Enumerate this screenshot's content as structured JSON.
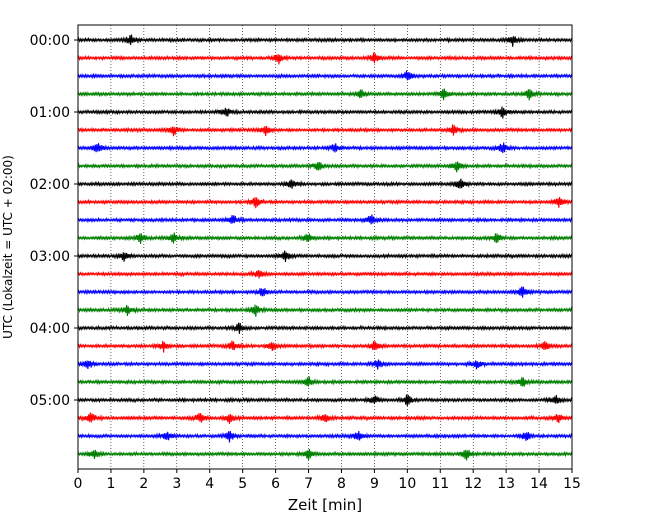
{
  "chart_data": {
    "type": "line",
    "title": "",
    "xlabel": "Zeit  [min]",
    "ylabel": "UTC (Lokalzeit = UTC + 02:00)",
    "xlim": [
      0,
      15
    ],
    "x_ticks": [
      0,
      1,
      2,
      3,
      4,
      5,
      6,
      7,
      8,
      9,
      10,
      11,
      12,
      13,
      14,
      15
    ],
    "x_tick_labels": [
      "0",
      "1",
      "2",
      "3",
      "4",
      "5",
      "6",
      "7",
      "8",
      "9",
      "10",
      "11",
      "12",
      "13",
      "14",
      "15"
    ],
    "grid": "vertical-dotted",
    "trace_minutes": 15,
    "trace_colors": [
      "#000000",
      "#ff0000",
      "#0000ff",
      "#008000"
    ],
    "trace_start_times": [
      "00:00",
      "00:15",
      "00:30",
      "00:45",
      "01:00",
      "01:15",
      "01:30",
      "01:45",
      "02:00",
      "02:15",
      "02:30",
      "02:45",
      "03:00",
      "03:15",
      "03:30",
      "03:45",
      "04:00",
      "04:15",
      "04:30",
      "04:45",
      "05:00",
      "05:15",
      "05:30",
      "05:45"
    ],
    "y_tick_labels": [
      {
        "trace": 0,
        "label": "00:00"
      },
      {
        "trace": 4,
        "label": "01:00"
      },
      {
        "trace": 8,
        "label": "02:00"
      },
      {
        "trace": 12,
        "label": "03:00"
      },
      {
        "trace": 16,
        "label": "04:00"
      },
      {
        "trace": 20,
        "label": "05:00"
      }
    ],
    "events": [
      [
        1.6,
        13.2
      ],
      [
        6.1,
        9.0
      ],
      [
        10.0
      ],
      [
        8.6,
        11.1,
        13.7
      ],
      [
        4.5,
        12.9
      ],
      [
        2.9,
        5.7,
        11.4
      ],
      [
        0.6,
        7.8,
        12.9
      ],
      [
        7.3,
        11.5
      ],
      [
        6.5,
        11.6
      ],
      [
        5.4,
        14.6
      ],
      [
        4.7,
        8.9
      ],
      [
        1.9,
        2.9,
        7.0,
        12.7
      ],
      [
        1.4,
        6.3
      ],
      [
        5.5
      ],
      [
        5.6,
        13.5
      ],
      [
        1.5,
        5.4
      ],
      [
        4.9
      ],
      [
        2.6,
        4.7,
        5.9,
        9.0,
        14.2
      ],
      [
        0.3,
        9.1,
        12.1
      ],
      [
        7.0,
        13.5
      ],
      [
        9.0,
        10.0,
        14.5
      ],
      [
        0.4,
        3.7,
        4.6,
        7.5,
        14.6
      ],
      [
        2.7,
        4.6,
        8.5,
        13.6
      ],
      [
        0.5,
        7.0,
        11.8
      ]
    ]
  }
}
